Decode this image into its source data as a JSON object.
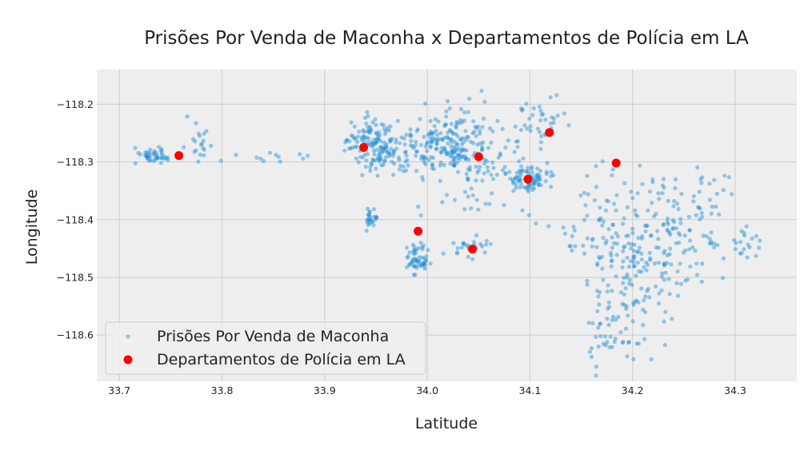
{
  "chart_data": {
    "type": "scatter",
    "title": "Prisões Por Venda de Maconha x Departamentos de Polícia em LA",
    "xlabel": "Latitude",
    "ylabel": "Longitude",
    "xlim": [
      33.678,
      34.36
    ],
    "ylim": [
      -118.68,
      -118.14
    ],
    "x_ticks": [
      33.7,
      33.8,
      33.9,
      34.0,
      34.1,
      34.2,
      34.3
    ],
    "x_tick_labels": [
      "33.7",
      "33.8",
      "33.9",
      "34.0",
      "34.1",
      "34.2",
      "34.3"
    ],
    "y_ticks": [
      -118.2,
      -118.3,
      -118.4,
      -118.5,
      -118.6
    ],
    "y_tick_labels": [
      "−118.2",
      "−118.3",
      "−118.4",
      "−118.5",
      "−118.6"
    ],
    "grid": true,
    "legend_position": "lower-left",
    "colors": {
      "arrests": "#1f8fd6",
      "stations": "#ff0000",
      "plot_background": "#eeeeee",
      "grid": "#cccccc"
    },
    "series": [
      {
        "name": "Prisões Por Venda de Maconha",
        "marker": "small-dot",
        "clusters": [
          {
            "cx": 33.735,
            "cy": -118.29,
            "sx": 0.009,
            "sy": 0.008,
            "n": 45
          },
          {
            "cx": 33.78,
            "cy": -118.27,
            "sx": 0.008,
            "sy": 0.02,
            "n": 20
          },
          {
            "cx": 33.86,
            "cy": -118.295,
            "sx": 0.03,
            "sy": 0.006,
            "n": 12
          },
          {
            "cx": 33.945,
            "cy": -118.265,
            "sx": 0.012,
            "sy": 0.018,
            "n": 90
          },
          {
            "cx": 33.985,
            "cy": -118.28,
            "sx": 0.03,
            "sy": 0.022,
            "n": 140
          },
          {
            "cx": 34.035,
            "cy": -118.26,
            "sx": 0.022,
            "sy": 0.03,
            "n": 110
          },
          {
            "cx": 34.05,
            "cy": -118.31,
            "sx": 0.025,
            "sy": 0.04,
            "n": 100
          },
          {
            "cx": 34.1,
            "cy": -118.33,
            "sx": 0.01,
            "sy": 0.012,
            "n": 70
          },
          {
            "cx": 34.11,
            "cy": -118.23,
            "sx": 0.015,
            "sy": 0.025,
            "n": 35
          },
          {
            "cx": 33.945,
            "cy": -118.4,
            "sx": 0.003,
            "sy": 0.008,
            "n": 25
          },
          {
            "cx": 33.99,
            "cy": -118.465,
            "sx": 0.006,
            "sy": 0.012,
            "n": 55
          },
          {
            "cx": 34.04,
            "cy": -118.445,
            "sx": 0.01,
            "sy": 0.012,
            "n": 25
          },
          {
            "cx": 34.17,
            "cy": -118.43,
            "sx": 0.03,
            "sy": 0.06,
            "n": 90
          },
          {
            "cx": 34.2,
            "cy": -118.5,
            "sx": 0.025,
            "sy": 0.07,
            "n": 110
          },
          {
            "cx": 34.24,
            "cy": -118.43,
            "sx": 0.025,
            "sy": 0.05,
            "n": 90
          },
          {
            "cx": 34.27,
            "cy": -118.38,
            "sx": 0.015,
            "sy": 0.05,
            "n": 25
          },
          {
            "cx": 34.31,
            "cy": -118.44,
            "sx": 0.01,
            "sy": 0.015,
            "n": 20
          },
          {
            "cx": 34.18,
            "cy": -118.6,
            "sx": 0.015,
            "sy": 0.03,
            "n": 30
          }
        ]
      },
      {
        "name": "Departamentos de Polícia em LA",
        "marker": "large-dot",
        "points": [
          {
            "x": 33.758,
            "y": -118.289
          },
          {
            "x": 33.938,
            "y": -118.275
          },
          {
            "x": 33.991,
            "y": -118.42
          },
          {
            "x": 34.044,
            "y": -118.451
          },
          {
            "x": 34.05,
            "y": -118.291
          },
          {
            "x": 34.098,
            "y": -118.33
          },
          {
            "x": 34.119,
            "y": -118.249
          },
          {
            "x": 34.184,
            "y": -118.302
          }
        ]
      }
    ]
  }
}
